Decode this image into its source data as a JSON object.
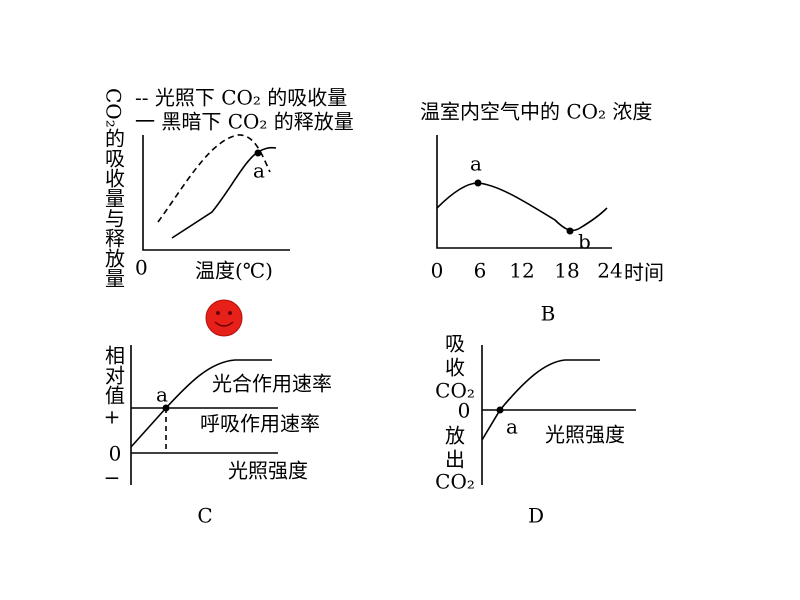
{
  "panel_a": {
    "y_label": "CO₂的吸收量与释放量",
    "legend": [
      "-- 光照下 CO₂ 的吸收量",
      "一 黑暗下 CO₂ 的释放量"
    ],
    "x_label": "温度(℃)",
    "origin": "0",
    "point": "a"
  },
  "panel_b": {
    "title": "温室内空气中的 CO₂ 浓度",
    "x_ticks": [
      "0",
      "6",
      "12",
      "18",
      "24"
    ],
    "x_label": "时间",
    "points": [
      "a",
      "b"
    ],
    "label": "B"
  },
  "panel_c": {
    "y_label": "相对值",
    "y_marks": [
      "+",
      "0",
      "−"
    ],
    "curves": [
      "光合作用速率",
      "呼吸作用速率"
    ],
    "x_label": "光照强度",
    "point": "a",
    "label": "C"
  },
  "panel_d": {
    "upper_label": [
      "吸",
      "收",
      "CO₂"
    ],
    "origin": "0",
    "lower_label": [
      "放",
      "出",
      "CO₂"
    ],
    "point": "a",
    "x_label": "光照强度",
    "label": "D"
  }
}
